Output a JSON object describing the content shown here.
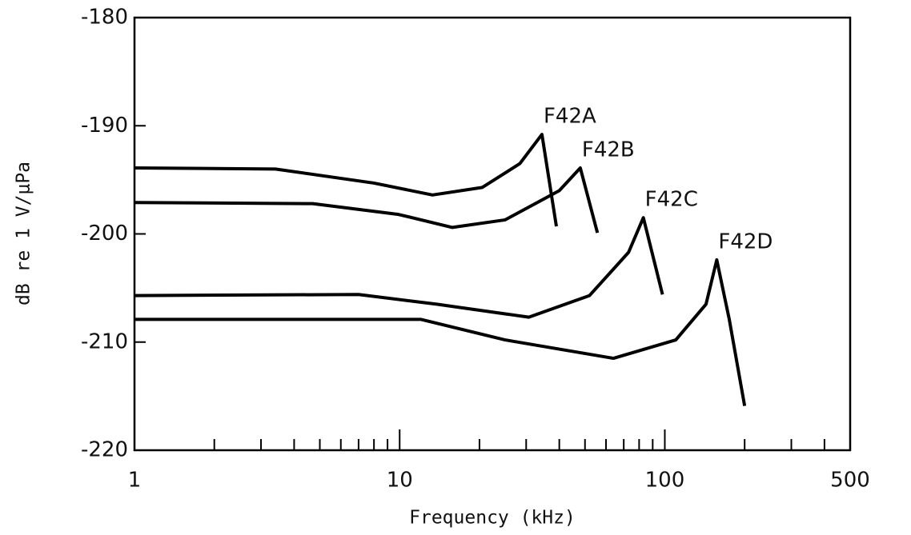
{
  "chart_data": {
    "type": "line",
    "x_label": "Frequency (kHz)",
    "y_label": "dB re 1 V/μPa",
    "xscale": "log",
    "xlim": [
      1,
      500
    ],
    "xticks": [
      1,
      10,
      100,
      500
    ],
    "xticks_minor": [
      2,
      3,
      4,
      5,
      6,
      7,
      8,
      9,
      20,
      30,
      40,
      50,
      60,
      70,
      80,
      90,
      200,
      300,
      400
    ],
    "ylim": [
      -220,
      -180
    ],
    "yticks": [
      -220,
      -210,
      -200,
      -190,
      -180
    ],
    "grid": false,
    "series": [
      {
        "name": "F42A",
        "color": "#000000",
        "x": [
          1,
          3.4,
          8,
          13.3,
          20.5,
          28.4,
          34.4,
          39
        ],
        "values": [
          -193.9,
          -194,
          -195.3,
          -196.4,
          -195.7,
          -193.5,
          -190.8,
          -199.3
        ]
      },
      {
        "name": "F42B",
        "color": "#000000",
        "x": [
          1,
          4.7,
          9.9,
          15.8,
          25,
          40,
          48,
          55.7
        ],
        "values": [
          -197.1,
          -197.2,
          -198.2,
          -199.4,
          -198.7,
          -196,
          -193.9,
          -199.9
        ]
      },
      {
        "name": "F42C",
        "color": "#000000",
        "x": [
          1,
          7,
          13.8,
          30.7,
          52,
          73,
          83,
          98
        ],
        "values": [
          -205.7,
          -205.6,
          -206.5,
          -207.7,
          -205.7,
          -201.7,
          -198.5,
          -205.6
        ]
      },
      {
        "name": "F42D",
        "color": "#000000",
        "x": [
          1,
          12,
          25,
          64,
          110,
          143,
          157,
          175,
          200
        ],
        "values": [
          -207.9,
          -207.9,
          -209.8,
          -211.5,
          -209.8,
          -206.5,
          -202.4,
          -207.9,
          -215.9
        ]
      }
    ]
  }
}
